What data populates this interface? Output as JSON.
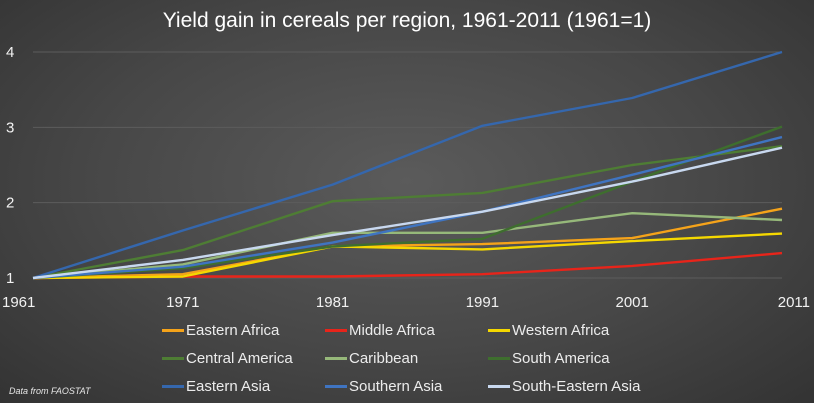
{
  "chart_data": {
    "type": "line",
    "title": "Yield gain in cereals per region, 1961-2011 (1961=1)",
    "xlabel": "",
    "ylabel": "",
    "categories": [
      "1961",
      "1971",
      "1981",
      "1991",
      "2001",
      "2011"
    ],
    "ylim": [
      1,
      4
    ],
    "yticks": [
      "1",
      "2",
      "3",
      "4"
    ],
    "grid": true,
    "legend_position": "bottom",
    "series": [
      {
        "name": "Eastern Africa",
        "color": "#f5a31a",
        "values": [
          1,
          1.05,
          1.42,
          1.45,
          1.53,
          1.92
        ]
      },
      {
        "name": "Middle Africa",
        "color": "#e8241a",
        "values": [
          1,
          1.02,
          1.02,
          1.05,
          1.16,
          1.33
        ]
      },
      {
        "name": "Western Africa",
        "color": "#f5d800",
        "values": [
          1,
          1.02,
          1.42,
          1.38,
          1.49,
          1.59
        ]
      },
      {
        "name": "Central America",
        "color": "#4e7d34",
        "values": [
          1,
          1.37,
          2.02,
          2.13,
          2.5,
          2.75
        ]
      },
      {
        "name": "Caribbean",
        "color": "#96b87a",
        "values": [
          1,
          1.18,
          1.6,
          1.6,
          1.86,
          1.77
        ]
      },
      {
        "name": "South America",
        "color": "#3e6e2e",
        "values": [
          1,
          1.13,
          1.42,
          1.52,
          2.28,
          3.01
        ]
      },
      {
        "name": "Eastern Asia",
        "color": "#3567ad",
        "values": [
          1,
          1.63,
          2.24,
          3.02,
          3.39,
          4.0
        ]
      },
      {
        "name": "Southern Asia",
        "color": "#3f74c1",
        "values": [
          1,
          1.15,
          1.47,
          1.88,
          2.37,
          2.87
        ]
      },
      {
        "name": "South-Eastern Asia",
        "color": "#c8d8ef",
        "values": [
          1,
          1.24,
          1.57,
          1.88,
          2.28,
          2.73
        ]
      }
    ]
  },
  "source_note": "Data from FAOSTAT"
}
